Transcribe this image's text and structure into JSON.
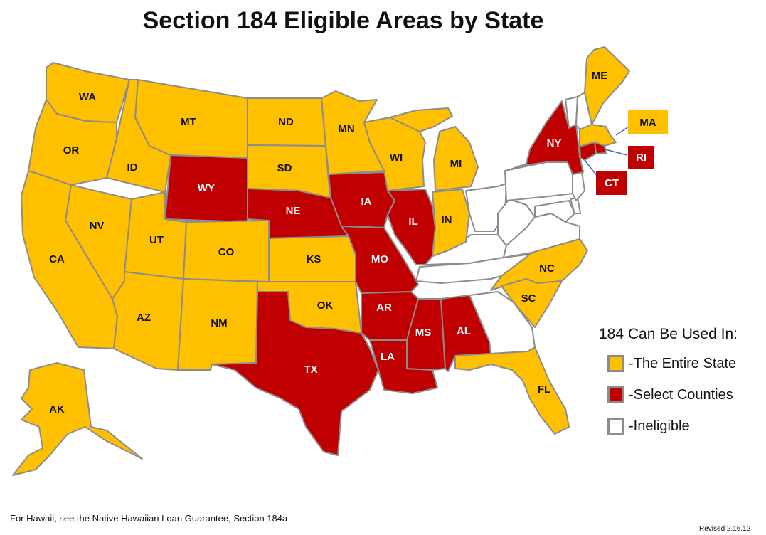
{
  "title": "Section 184 Eligible Areas by State",
  "colors": {
    "entire": "#ffc000",
    "select": "#c00000",
    "ineligible": "#ffffff",
    "border": "#8c8c8c"
  },
  "legend": {
    "title": "184 Can Be Used In:",
    "items": [
      {
        "label": "-The Entire State",
        "status": "entire"
      },
      {
        "label": "-Select Counties",
        "status": "select"
      },
      {
        "label": "-Ineligible",
        "status": "ineligible"
      }
    ]
  },
  "states": [
    {
      "abbr": "WA",
      "status": "entire"
    },
    {
      "abbr": "OR",
      "status": "entire"
    },
    {
      "abbr": "CA",
      "status": "entire"
    },
    {
      "abbr": "ID",
      "status": "entire"
    },
    {
      "abbr": "NV",
      "status": "entire"
    },
    {
      "abbr": "MT",
      "status": "entire"
    },
    {
      "abbr": "WY",
      "status": "select"
    },
    {
      "abbr": "UT",
      "status": "entire"
    },
    {
      "abbr": "AZ",
      "status": "entire"
    },
    {
      "abbr": "CO",
      "status": "entire"
    },
    {
      "abbr": "NM",
      "status": "entire"
    },
    {
      "abbr": "ND",
      "status": "entire"
    },
    {
      "abbr": "SD",
      "status": "entire"
    },
    {
      "abbr": "NE",
      "status": "select"
    },
    {
      "abbr": "KS",
      "status": "entire"
    },
    {
      "abbr": "OK",
      "status": "entire"
    },
    {
      "abbr": "TX",
      "status": "select"
    },
    {
      "abbr": "MN",
      "status": "entire"
    },
    {
      "abbr": "IA",
      "status": "select"
    },
    {
      "abbr": "MO",
      "status": "select"
    },
    {
      "abbr": "AR",
      "status": "select"
    },
    {
      "abbr": "LA",
      "status": "select"
    },
    {
      "abbr": "WI",
      "status": "entire"
    },
    {
      "abbr": "IL",
      "status": "select"
    },
    {
      "abbr": "MI",
      "status": "entire"
    },
    {
      "abbr": "IN",
      "status": "entire"
    },
    {
      "abbr": "MS",
      "status": "select"
    },
    {
      "abbr": "AL",
      "status": "select"
    },
    {
      "abbr": "NC",
      "status": "entire"
    },
    {
      "abbr": "SC",
      "status": "entire"
    },
    {
      "abbr": "FL",
      "status": "entire"
    },
    {
      "abbr": "NY",
      "status": "select"
    },
    {
      "abbr": "ME",
      "status": "entire"
    },
    {
      "abbr": "AK",
      "status": "entire"
    },
    {
      "abbr": "MA",
      "status": "entire"
    },
    {
      "abbr": "RI",
      "status": "select"
    },
    {
      "abbr": "CT",
      "status": "select"
    }
  ],
  "ineligible_states": [
    "OH",
    "KY",
    "TN",
    "GA",
    "WV",
    "VA",
    "PA",
    "MD",
    "DE",
    "NJ",
    "VT",
    "NH"
  ],
  "footnote": "For Hawaii, see the Native Hawaiian Loan Guarantee, Section 184a",
  "revised": "Revised 2.16.12"
}
